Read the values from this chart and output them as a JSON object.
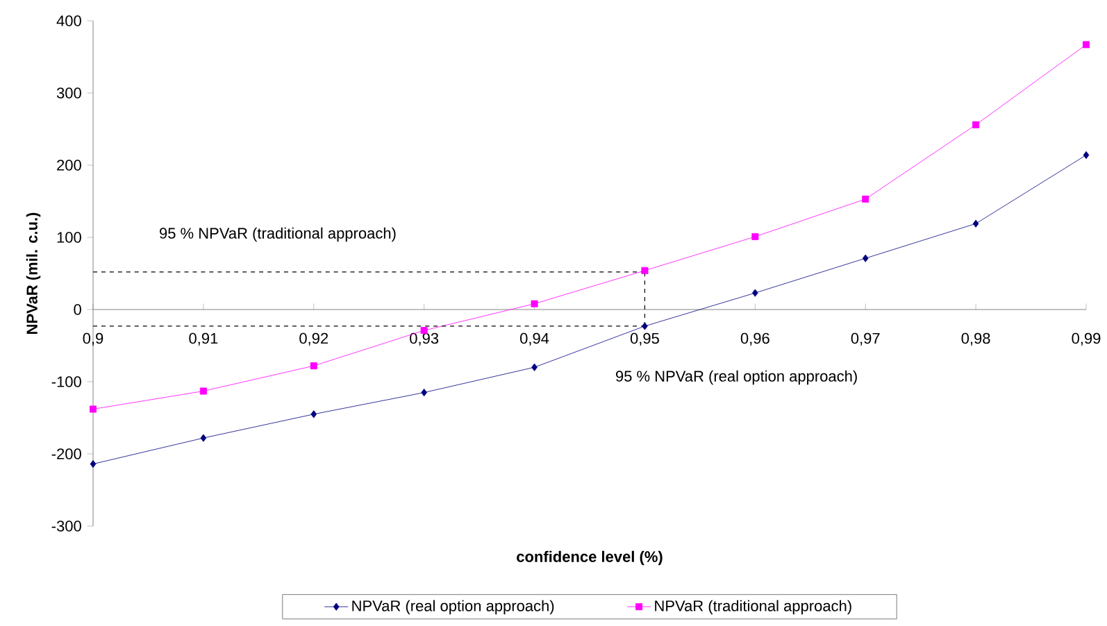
{
  "chart_data": {
    "type": "line",
    "xlabel": "confidence level (%)",
    "ylabel": "NPVaR (mil. c.u.)",
    "x": [
      0.9,
      0.91,
      0.92,
      0.93,
      0.94,
      0.95,
      0.96,
      0.97,
      0.98,
      0.99
    ],
    "series": [
      {
        "name": "NPVaR (real option approach)",
        "color": "#000080",
        "marker": "diamond",
        "values": [
          -214,
          -178,
          -145,
          -115,
          -80,
          -23,
          23,
          71,
          119,
          214
        ]
      },
      {
        "name": "NPVaR (traditional approach)",
        "color": "#ff00ff",
        "marker": "square",
        "values": [
          -138,
          -113,
          -78,
          -29,
          8,
          54,
          101,
          153,
          256,
          367
        ]
      }
    ],
    "ref_lines": [
      {
        "axis": "y",
        "value": 52,
        "label": "95 % NPVaR (traditional approach)",
        "color": "#000000",
        "line_style": "dashed"
      },
      {
        "axis": "y",
        "value": -23,
        "label": "95 % NPVaR (real option approach)",
        "color": "#000000",
        "line_style": "dashed"
      },
      {
        "axis": "x",
        "value": 0.95,
        "color": "#000000",
        "line_style": "dashed"
      }
    ],
    "xlim": [
      0.9,
      0.99
    ],
    "ylim": [
      -300,
      400
    ],
    "xticks": [
      {
        "value": 0.9,
        "label": "0,9"
      },
      {
        "value": 0.91,
        "label": "0,91"
      },
      {
        "value": 0.92,
        "label": "0,92"
      },
      {
        "value": 0.93,
        "label": "0,93"
      },
      {
        "value": 0.94,
        "label": "0,94"
      },
      {
        "value": 0.95,
        "label": "0,95"
      },
      {
        "value": 0.96,
        "label": "0,96"
      },
      {
        "value": 0.97,
        "label": "0,97"
      },
      {
        "value": 0.98,
        "label": "0,98"
      },
      {
        "value": 0.99,
        "label": "0,99"
      }
    ],
    "yticks": [
      -300,
      -200,
      -100,
      0,
      100,
      200,
      300,
      400
    ],
    "legend": "bottom",
    "grid": false
  }
}
